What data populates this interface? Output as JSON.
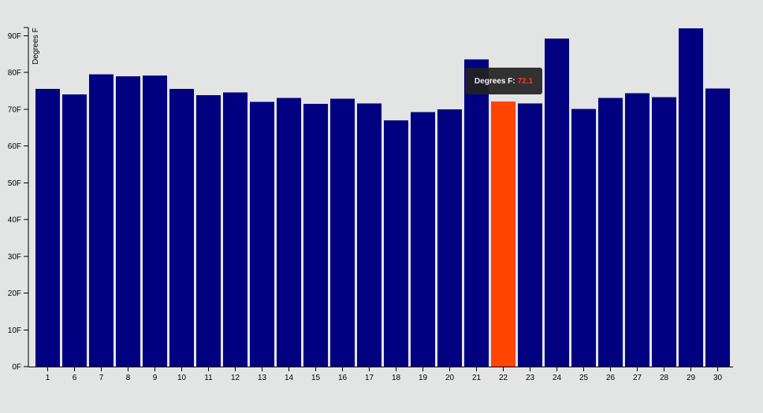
{
  "chart_data": {
    "type": "bar",
    "ylabel": "Degrees F",
    "ylim": [
      0,
      92
    ],
    "y_ticks": [
      "0F",
      "10F",
      "20F",
      "30F",
      "40F",
      "50F",
      "60F",
      "70F",
      "80F",
      "90F"
    ],
    "categories": [
      "1",
      "6",
      "7",
      "8",
      "9",
      "10",
      "11",
      "12",
      "13",
      "14",
      "15",
      "16",
      "17",
      "18",
      "19",
      "20",
      "21",
      "22",
      "23",
      "24",
      "25",
      "26",
      "27",
      "28",
      "29",
      "30"
    ],
    "values": [
      75.5,
      74.0,
      79.5,
      79.0,
      79.2,
      75.5,
      73.8,
      74.6,
      72.0,
      73.1,
      71.5,
      72.9,
      71.6,
      67.0,
      69.2,
      70.0,
      83.5,
      72.1,
      71.6,
      89.2,
      70.1,
      73.1,
      74.3,
      73.3,
      92.0,
      75.6
    ],
    "highlighted_category": "22",
    "colors": {
      "bar": "#000080",
      "highlight": "#ff4500",
      "axis": "#000000"
    },
    "grid": false,
    "legend": "none"
  },
  "tooltip": {
    "label": "Degrees F:",
    "value": "72.1"
  }
}
